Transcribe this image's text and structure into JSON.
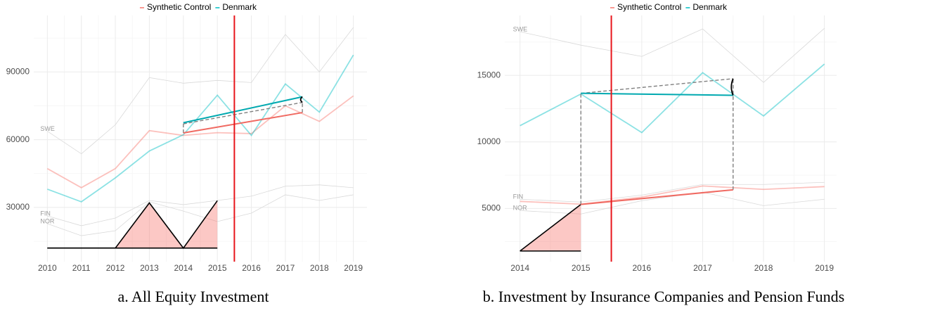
{
  "chart_data": [
    {
      "type": "line",
      "caption": "a. All Equity Investment",
      "x": [
        2010,
        2011,
        2012,
        2013,
        2014,
        2015,
        2016,
        2017,
        2018,
        2019
      ],
      "xlim": [
        2009.6,
        2019.4
      ],
      "xticks": [
        2010,
        2011,
        2012,
        2013,
        2014,
        2015,
        2016,
        2017,
        2018,
        2019
      ],
      "ylim": [
        6000,
        115000
      ],
      "yticks": [
        30000,
        60000,
        90000
      ],
      "grid": true,
      "legend": "top",
      "treatment": 2015.5,
      "treatment_color": "#e8151b",
      "series": [
        {
          "name": "Synthetic Control",
          "color": "#f8766d",
          "values": [
            47200,
            38750,
            47200,
            64000,
            61900,
            63100,
            62700,
            75000,
            68100,
            79400
          ]
        },
        {
          "name": "Denmark",
          "color": "#00bfc4",
          "values": [
            38100,
            32500,
            43100,
            55000,
            62200,
            79700,
            61900,
            84700,
            72200,
            97500
          ]
        }
      ],
      "countries": [
        {
          "name": "SWE",
          "values": [
            63750,
            53750,
            66600,
            87500,
            85000,
            86250,
            85300,
            106600,
            90000,
            109700
          ]
        },
        {
          "name": "FIN",
          "values": [
            26250,
            21900,
            25300,
            33100,
            31250,
            33100,
            35000,
            39400,
            40000,
            38750
          ]
        },
        {
          "name": "NOR",
          "values": [
            22800,
            17500,
            19700,
            32500,
            28400,
            23750,
            27500,
            35600,
            33100,
            35600
          ]
        }
      ],
      "trends": [
        {
          "color": "#00a9b0",
          "x": [
            2014,
            2017.5
          ],
          "values": [
            67500,
            79000
          ]
        },
        {
          "color": "#f06a62",
          "x": [
            2014,
            2017.5
          ],
          "values": [
            63000,
            72000
          ]
        }
      ],
      "dashed": [
        {
          "x": [
            2014,
            2017.5
          ],
          "values": [
            67000,
            76500
          ]
        },
        {
          "x": [
            2014,
            2014
          ],
          "values": [
            63000,
            67000
          ]
        },
        {
          "x": [
            2017.5,
            2017.5
          ],
          "values": [
            72000,
            76500
          ]
        }
      ],
      "weights": {
        "x": [
          2010,
          2011,
          2012,
          2013,
          2014,
          2015
        ],
        "values": [
          12000,
          12000,
          12000,
          32000,
          12000,
          33000
        ],
        "base": 12000,
        "color": "#f8766d"
      }
    },
    {
      "type": "line",
      "caption": "b. Investment by Insurance Companies and Pension Funds",
      "x": [
        2014,
        2015,
        2016,
        2017,
        2018,
        2019
      ],
      "xlim": [
        2013.75,
        2019.2
      ],
      "xticks": [
        2014,
        2015,
        2016,
        2017,
        2018,
        2019
      ],
      "ylim": [
        1000,
        19500
      ],
      "yticks": [
        5000,
        10000,
        15000
      ],
      "grid": true,
      "legend": "top",
      "treatment": 2015.5,
      "treatment_color": "#e8151b",
      "series": [
        {
          "name": "Synthetic Control",
          "color": "#f8766d",
          "values": [
            5530,
            5320,
            5850,
            6690,
            6430,
            6640
          ]
        },
        {
          "name": "Denmark",
          "color": "#00bfc4",
          "values": [
            11217,
            13600,
            10700,
            15200,
            11950,
            15850
          ]
        }
      ],
      "countries": [
        {
          "name": "SWE",
          "values": [
            18280,
            17270,
            16420,
            18490,
            14470,
            18540
          ]
        },
        {
          "name": "FIN",
          "values": [
            5690,
            5480,
            6000,
            6800,
            6800,
            6960
          ]
        },
        {
          "name": "NOR",
          "values": [
            4840,
            4580,
            5580,
            6220,
            5210,
            5690
          ]
        }
      ],
      "trends": [
        {
          "color": "#00a9b0",
          "x": [
            2015,
            2017.5
          ],
          "values": [
            13650,
            13500
          ]
        },
        {
          "color": "#f06a62",
          "x": [
            2015,
            2017.5
          ],
          "values": [
            5300,
            6400
          ]
        }
      ],
      "dashed": [
        {
          "x": [
            2015,
            2017.5
          ],
          "values": [
            13650,
            14750
          ]
        },
        {
          "x": [
            2015,
            2015
          ],
          "values": [
            5300,
            13650
          ]
        },
        {
          "x": [
            2017.5,
            2017.5
          ],
          "values": [
            6400,
            14750
          ]
        }
      ],
      "weights": {
        "x": [
          2014,
          2015
        ],
        "values": [
          1800,
          5300
        ],
        "base": 1800,
        "color": "#f8766d"
      }
    }
  ]
}
